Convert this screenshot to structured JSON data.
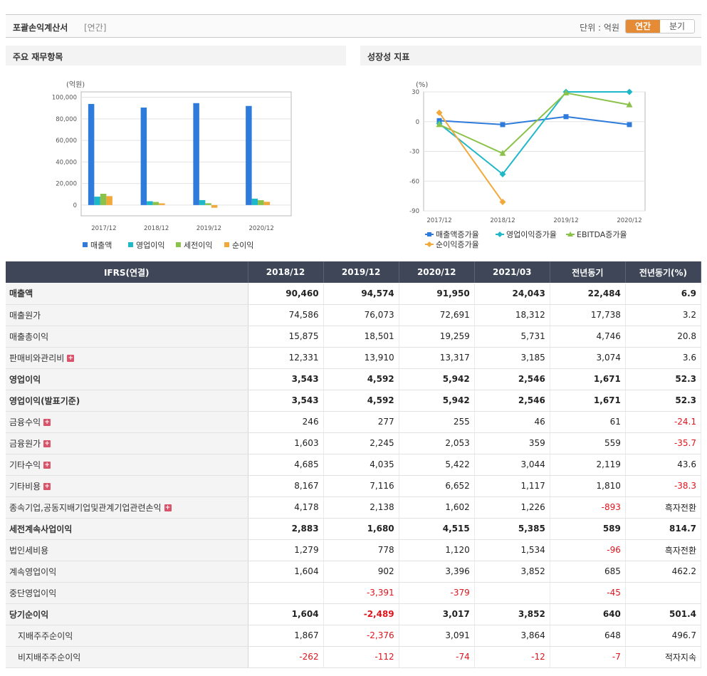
{
  "header": {
    "title": "포괄손익계산서",
    "period_tag": "[연간]",
    "unit": "단위 : 억원",
    "toggle_annual": "연간",
    "toggle_quarter": "분기"
  },
  "panels": {
    "left_title": "주요 재무항목",
    "right_title": "성장성 지표"
  },
  "colors": {
    "accent": "#e58a35",
    "table_header": "#3e4658",
    "negative": "#e1131b"
  },
  "chart_data": [
    {
      "type": "bar",
      "title": "주요 재무항목",
      "ylabel": "(억원)",
      "categories": [
        "2017/12",
        "2018/12",
        "2019/12",
        "2020/12"
      ],
      "ylim": [
        -10000,
        105000
      ],
      "yticks": [
        0,
        20000,
        40000,
        60000,
        80000,
        100000
      ],
      "ytick_labels": [
        "0",
        "20,000",
        "40,000",
        "60,000",
        "80,000",
        "100,000"
      ],
      "series": [
        {
          "name": "매출액",
          "color": "#2e7bdc",
          "values": [
            93800,
            90460,
            94574,
            91950
          ]
        },
        {
          "name": "영업이익",
          "color": "#1fb8c9",
          "values": [
            7800,
            3543,
            4592,
            5942
          ]
        },
        {
          "name": "세전이익",
          "color": "#8bc34a",
          "values": [
            10500,
            2883,
            1680,
            4515
          ]
        },
        {
          "name": "순이익",
          "color": "#f2a93b",
          "values": [
            8300,
            1604,
            -2489,
            3017
          ]
        }
      ],
      "legend": "bottom"
    },
    {
      "type": "line",
      "title": "성장성 지표",
      "ylabel": "(%)",
      "categories": [
        "2017/12",
        "2018/12",
        "2019/12",
        "2020/12"
      ],
      "ylim": [
        -90,
        30
      ],
      "yticks": [
        30,
        0,
        -30,
        -60,
        -90
      ],
      "series": [
        {
          "name": "매출액증가율",
          "color": "#2e7bdc",
          "marker": "square",
          "values": [
            1,
            -3,
            5,
            -3
          ]
        },
        {
          "name": "영업이익증가율",
          "color": "#1fb8c9",
          "marker": "diamond",
          "values": [
            -2,
            -53,
            30,
            30
          ]
        },
        {
          "name": "EBITDA증가율",
          "color": "#8bc34a",
          "marker": "triangle",
          "values": [
            -3,
            -32,
            29,
            17
          ]
        },
        {
          "name": "순이익증가율",
          "color": "#f2a93b",
          "marker": "diamond",
          "values": [
            9,
            -81,
            null,
            null
          ]
        }
      ],
      "legend": "bottom"
    }
  ],
  "table": {
    "header": [
      "IFRS(연결)",
      "2018/12",
      "2019/12",
      "2020/12",
      "2021/03",
      "전년동기",
      "전년동기(%)"
    ],
    "rows": [
      {
        "label": "매출액",
        "bold": true,
        "values": [
          "90,460",
          "94,574",
          "91,950",
          "24,043",
          "22,484",
          "6.9"
        ]
      },
      {
        "label": "매출원가",
        "values": [
          "74,586",
          "76,073",
          "72,691",
          "18,312",
          "17,738",
          "3.2"
        ]
      },
      {
        "label": "매출총이익",
        "values": [
          "15,875",
          "18,501",
          "19,259",
          "5,731",
          "4,746",
          "20.8"
        ]
      },
      {
        "label": "판매비와관리비",
        "expand": true,
        "values": [
          "12,331",
          "13,910",
          "13,317",
          "3,185",
          "3,074",
          "3.6"
        ]
      },
      {
        "label": "영업이익",
        "bold": true,
        "values": [
          "3,543",
          "4,592",
          "5,942",
          "2,546",
          "1,671",
          "52.3"
        ]
      },
      {
        "label": "영업이익(발표기준)",
        "bold": true,
        "values": [
          "3,543",
          "4,592",
          "5,942",
          "2,546",
          "1,671",
          "52.3"
        ]
      },
      {
        "label": "금융수익",
        "expand": true,
        "values": [
          "246",
          "277",
          "255",
          "46",
          "61",
          "-24.1"
        ]
      },
      {
        "label": "금융원가",
        "expand": true,
        "values": [
          "1,603",
          "2,245",
          "2,053",
          "359",
          "559",
          "-35.7"
        ]
      },
      {
        "label": "기타수익",
        "expand": true,
        "values": [
          "4,685",
          "4,035",
          "5,422",
          "3,044",
          "2,119",
          "43.6"
        ]
      },
      {
        "label": "기타비용",
        "expand": true,
        "values": [
          "8,167",
          "7,116",
          "6,652",
          "1,117",
          "1,810",
          "-38.3"
        ]
      },
      {
        "label": "종속기업,공동지배기업및관계기업관련손익",
        "expand": true,
        "values": [
          "4,178",
          "2,138",
          "1,602",
          "1,226",
          "-893",
          "흑자전환"
        ]
      },
      {
        "label": "세전계속사업이익",
        "bold": true,
        "values": [
          "2,883",
          "1,680",
          "4,515",
          "5,385",
          "589",
          "814.7"
        ]
      },
      {
        "label": "법인세비용",
        "values": [
          "1,279",
          "778",
          "1,120",
          "1,534",
          "-96",
          "흑자전환"
        ]
      },
      {
        "label": "계속영업이익",
        "values": [
          "1,604",
          "902",
          "3,396",
          "3,852",
          "685",
          "462.2"
        ]
      },
      {
        "label": "중단영업이익",
        "values": [
          "",
          "-3,391",
          "-379",
          "",
          "-45",
          ""
        ]
      },
      {
        "label": "당기순이익",
        "bold": true,
        "values": [
          "1,604",
          "-2,489",
          "3,017",
          "3,852",
          "640",
          "501.4"
        ]
      },
      {
        "label": "지배주주순이익",
        "indent": true,
        "values": [
          "1,867",
          "-2,376",
          "3,091",
          "3,864",
          "648",
          "496.7"
        ]
      },
      {
        "label": "비지배주주순이익",
        "indent": true,
        "values": [
          "-262",
          "-112",
          "-74",
          "-12",
          "-7",
          "적자지속"
        ]
      }
    ]
  }
}
